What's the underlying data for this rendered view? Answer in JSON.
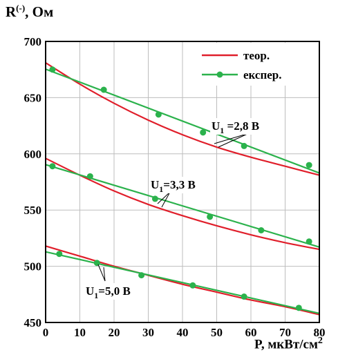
{
  "chart_data": {
    "type": "line",
    "xlabel": "P, мкВт/см",
    "xlabel_sup": "2",
    "ylabel": "R",
    "ylabel_sup": "(-)",
    "ylabel_unit": ", Ом",
    "xlim": [
      0,
      80
    ],
    "ylim": [
      450,
      700
    ],
    "x_ticks": [
      0,
      10,
      20,
      30,
      40,
      50,
      60,
      70,
      80
    ],
    "y_ticks": [
      450,
      500,
      550,
      600,
      650,
      700
    ],
    "grid": true,
    "legend": {
      "placement": "top-right",
      "entries": [
        {
          "label": "теор.",
          "color": "#e01e2a",
          "marker": false
        },
        {
          "label": "експер.",
          "color": "#2bb24c",
          "marker": true
        }
      ]
    },
    "theory_series": [
      {
        "x": [
          0,
          10,
          20,
          30,
          40,
          50,
          60,
          70,
          80
        ],
        "y": [
          681,
          662,
          645,
          630,
          617,
          606,
          597,
          589,
          581
        ]
      },
      {
        "x": [
          0,
          10,
          20,
          30,
          40,
          50,
          60,
          70,
          80
        ],
        "y": [
          596,
          581,
          567,
          555,
          545,
          536,
          528,
          521,
          515
        ]
      },
      {
        "x": [
          0,
          10,
          20,
          30,
          40,
          50,
          60,
          70,
          80
        ],
        "y": [
          518,
          509,
          500,
          492,
          484,
          477,
          470,
          464,
          457
        ]
      }
    ],
    "experiment_series": [
      {
        "x": [
          2,
          17,
          33,
          46,
          58,
          77
        ],
        "y": [
          675,
          657,
          635,
          619,
          607,
          590
        ]
      },
      {
        "x": [
          2,
          13,
          32,
          48,
          63,
          77
        ],
        "y": [
          589,
          580,
          560,
          544,
          532,
          522
        ]
      },
      {
        "x": [
          4,
          15,
          28,
          43,
          58,
          74
        ],
        "y": [
          511,
          503,
          492,
          483,
          473,
          463
        ]
      }
    ],
    "annotations": [
      {
        "main": "U",
        "sub": "1",
        "rest": " =2,8 В"
      },
      {
        "main": "U",
        "sub": "1",
        "rest": "=3,3 В"
      },
      {
        "main": "U",
        "sub": "1",
        "rest": "=5,0 В"
      }
    ]
  }
}
